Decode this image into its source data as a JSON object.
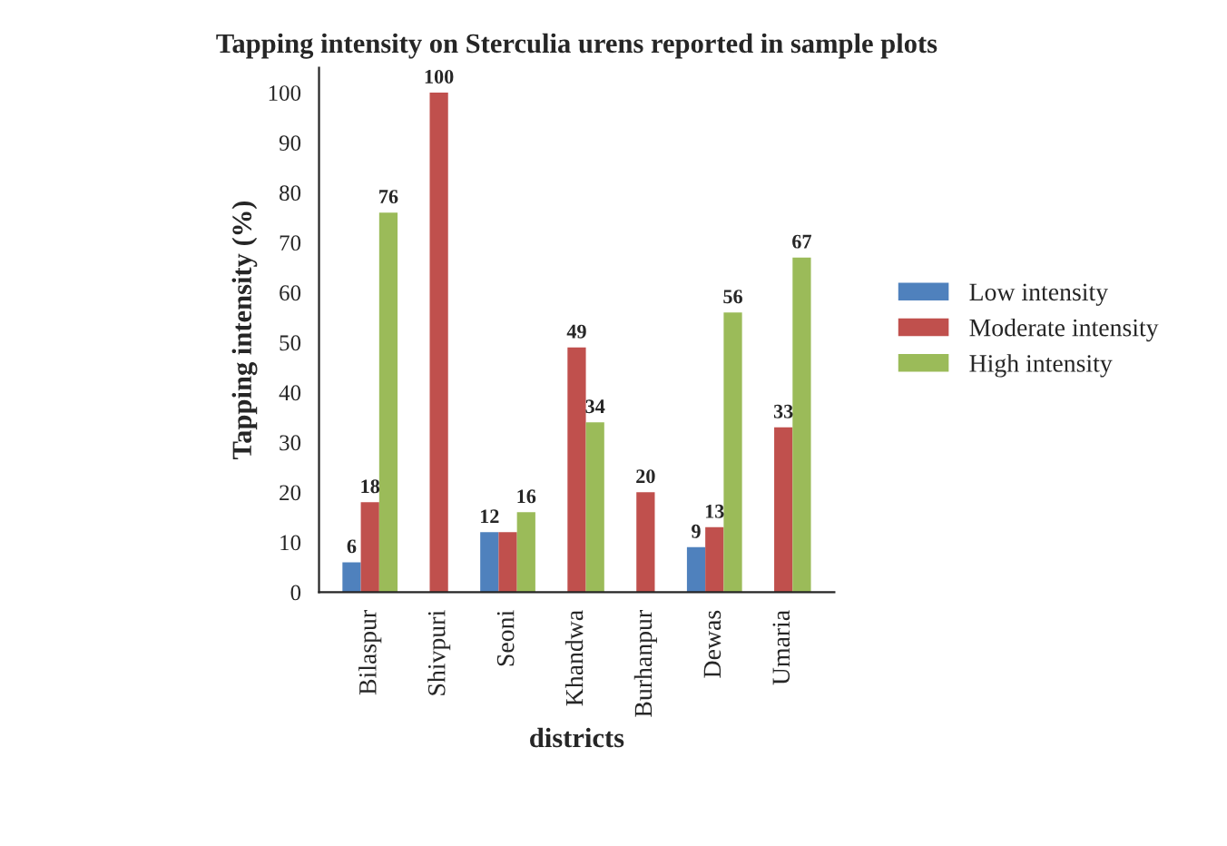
{
  "chart_data": {
    "type": "bar",
    "title": "Tapping intensity on Sterculia urens reported in sample plots",
    "xlabel": "districts",
    "ylabel": "Tapping intensity (%)",
    "categories": [
      "Bilaspur",
      "Shivpuri",
      "Seoni",
      "Khandwa",
      "Burhanpur",
      "Dewas",
      "Umaria"
    ],
    "series": [
      {
        "name": "Low intensity",
        "color": "#4f81bd",
        "values": [
          6,
          null,
          12,
          null,
          null,
          9,
          null
        ],
        "value_labels": [
          "6",
          null,
          "12",
          null,
          null,
          "9",
          null
        ]
      },
      {
        "name": "Moderate intensity",
        "color": "#c0504d",
        "values": [
          18,
          100,
          12,
          49,
          20,
          13,
          33
        ],
        "value_labels": [
          "18",
          "100",
          null,
          "49",
          "20",
          "13",
          "33"
        ]
      },
      {
        "name": "High intensity",
        "color": "#9bbb59",
        "values": [
          76,
          null,
          16,
          34,
          null,
          56,
          67
        ],
        "value_labels": [
          "76",
          null,
          "16",
          "34",
          null,
          "56",
          "67"
        ]
      }
    ],
    "ylim": [
      0,
      105
    ],
    "yticks": [
      0,
      10,
      20,
      30,
      40,
      50,
      60,
      70,
      80,
      90,
      100
    ],
    "legend": "right",
    "grid": false
  }
}
